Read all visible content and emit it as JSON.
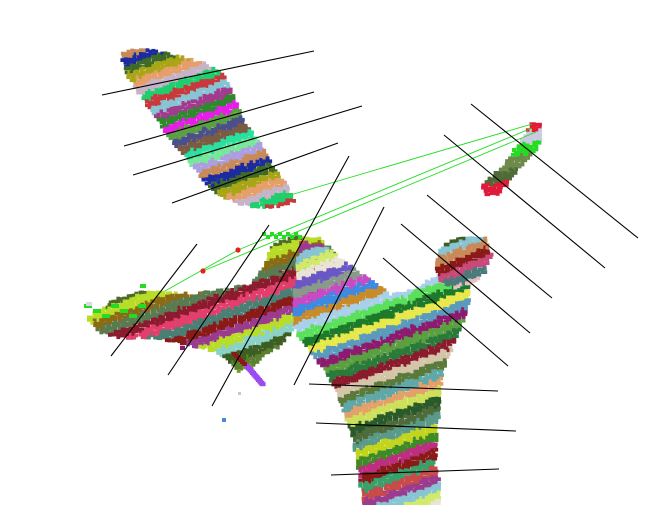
{
  "scene": {
    "background": "#ffffff",
    "line_color": "#000000",
    "link_color": "#22dd22",
    "marker_color": "#e8211c"
  },
  "parts": {
    "upper_left_palette": [
      "#c8393c",
      "#87c4d4",
      "#a23b8e",
      "#2d8a2d",
      "#e81ce8",
      "#5aa040",
      "#4b4f8c",
      "#7b5c43",
      "#2ae0a0",
      "#77e89a",
      "#ab9fe0",
      "#c98a5a",
      "#1d2ba0",
      "#3e6b27",
      "#a8a516",
      "#e5a06a",
      "#c7b3c9",
      "#1fcf6e"
    ],
    "upper_right_palette": [
      "#e01b3a",
      "#c9c9e0",
      "#25dc22",
      "#6d8a4a",
      "#4e6b38"
    ],
    "left_fan_palette": [
      "#3d5e22",
      "#5a8030",
      "#7a9a2a",
      "#c3d41c",
      "#d3d468",
      "#4e6b26",
      "#b8dd28",
      "#8b6a14",
      "#5a7a50",
      "#8c1b2e",
      "#e23f6c",
      "#4a7f74",
      "#8a1a18",
      "#9b3b8e",
      "#b8dd28",
      "#8ad1c7"
    ],
    "right_body_palette": [
      "#4e6b3a",
      "#5a9a8a",
      "#c3d41c",
      "#3e8a26",
      "#bd2e80",
      "#8a1a18",
      "#3aa06a",
      "#c94a4a",
      "#9b3b8e",
      "#87c4d4",
      "#d1ea6a",
      "#e9e5d5",
      "#6a57c7",
      "#8a9a8a",
      "#c94ac4",
      "#3d8ae0",
      "#c98a2a",
      "#a8d0ea",
      "#5ae05a",
      "#1d7a2a",
      "#e8e84a",
      "#5a9abd",
      "#8c1b6e",
      "#5aa040",
      "#2a7a3a",
      "#8c1b2e",
      "#d4c4a8",
      "#5a7a3a",
      "#60a8a8",
      "#e5a06a",
      "#cce05a",
      "#2a5a2a"
    ],
    "right_tuft_palette": [
      "#87c4d4",
      "#c98a5a",
      "#8a1a18",
      "#c94a7a",
      "#4a7a7a",
      "#e5c0c0",
      "#3d5e22"
    ]
  }
}
